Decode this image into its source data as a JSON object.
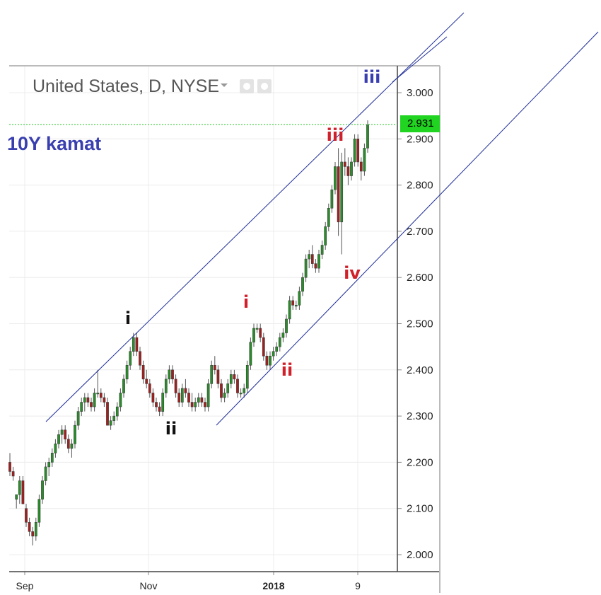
{
  "header": {
    "title": "United States, D, NYSE",
    "series_label": "10Y kamat"
  },
  "colors": {
    "up": "#2a8c2a",
    "down": "#a02020",
    "channel": "#1f2e9a",
    "wave_black": "#111111",
    "wave_red": "#d0202a",
    "wave_blue": "#3a3fb0",
    "price_tag": "#21d421"
  },
  "chart_data": {
    "type": "candlestick",
    "title": "United States, D, NYSE",
    "ylim": [
      1.95,
      3.06
    ],
    "y_ticks": [
      "3.000",
      "2.900",
      "2.800",
      "2.700",
      "2.600",
      "2.500",
      "2.400",
      "2.300",
      "2.200",
      "2.100",
      "2.000"
    ],
    "x_ticks": [
      "Sep",
      "Nov",
      "2018",
      "9"
    ],
    "last_price": "2.931",
    "grid": true,
    "candles": [
      [
        2.2,
        2.22,
        2.17,
        2.18
      ],
      [
        2.18,
        2.19,
        2.16,
        2.17
      ],
      [
        2.12,
        2.13,
        2.1,
        2.13
      ],
      [
        2.13,
        2.17,
        2.11,
        2.16
      ],
      [
        2.16,
        2.17,
        2.11,
        2.11
      ],
      [
        2.1,
        2.11,
        2.06,
        2.07
      ],
      [
        2.07,
        2.08,
        2.04,
        2.05
      ],
      [
        2.05,
        2.06,
        2.02,
        2.04
      ],
      [
        2.04,
        2.08,
        2.03,
        2.07
      ],
      [
        2.07,
        2.13,
        2.06,
        2.12
      ],
      [
        2.12,
        2.17,
        2.11,
        2.16
      ],
      [
        2.16,
        2.2,
        2.15,
        2.19
      ],
      [
        2.19,
        2.21,
        2.17,
        2.2
      ],
      [
        2.2,
        2.23,
        2.19,
        2.22
      ],
      [
        2.22,
        2.25,
        2.21,
        2.24
      ],
      [
        2.24,
        2.27,
        2.23,
        2.26
      ],
      [
        2.26,
        2.28,
        2.24,
        2.27
      ],
      [
        2.27,
        2.28,
        2.24,
        2.25
      ],
      [
        2.25,
        2.26,
        2.22,
        2.23
      ],
      [
        2.23,
        2.25,
        2.21,
        2.24
      ],
      [
        2.24,
        2.29,
        2.23,
        2.28
      ],
      [
        2.28,
        2.32,
        2.27,
        2.31
      ],
      [
        2.31,
        2.34,
        2.3,
        2.33
      ],
      [
        2.33,
        2.35,
        2.31,
        2.34
      ],
      [
        2.34,
        2.35,
        2.32,
        2.33
      ],
      [
        2.33,
        2.34,
        2.31,
        2.32
      ],
      [
        2.32,
        2.36,
        2.31,
        2.35
      ],
      [
        2.35,
        2.4,
        2.34,
        2.35
      ],
      [
        2.35,
        2.36,
        2.33,
        2.34
      ],
      [
        2.34,
        2.35,
        2.32,
        2.33
      ],
      [
        2.33,
        2.34,
        2.28,
        2.28
      ],
      [
        2.28,
        2.3,
        2.27,
        2.29
      ],
      [
        2.29,
        2.31,
        2.28,
        2.3
      ],
      [
        2.3,
        2.33,
        2.29,
        2.32
      ],
      [
        2.32,
        2.36,
        2.31,
        2.35
      ],
      [
        2.35,
        2.39,
        2.34,
        2.38
      ],
      [
        2.38,
        2.42,
        2.37,
        2.41
      ],
      [
        2.41,
        2.45,
        2.4,
        2.44
      ],
      [
        2.44,
        2.48,
        2.43,
        2.47
      ],
      [
        2.47,
        2.48,
        2.43,
        2.44
      ],
      [
        2.44,
        2.45,
        2.4,
        2.41
      ],
      [
        2.41,
        2.42,
        2.37,
        2.38
      ],
      [
        2.38,
        2.4,
        2.36,
        2.37
      ],
      [
        2.37,
        2.38,
        2.34,
        2.35
      ],
      [
        2.35,
        2.36,
        2.32,
        2.33
      ],
      [
        2.33,
        2.34,
        2.31,
        2.32
      ],
      [
        2.32,
        2.33,
        2.3,
        2.31
      ],
      [
        2.31,
        2.36,
        2.3,
        2.35
      ],
      [
        2.35,
        2.39,
        2.34,
        2.38
      ],
      [
        2.38,
        2.41,
        2.37,
        2.4
      ],
      [
        2.4,
        2.41,
        2.37,
        2.38
      ],
      [
        2.38,
        2.39,
        2.34,
        2.35
      ],
      [
        2.35,
        2.36,
        2.32,
        2.33
      ],
      [
        2.33,
        2.37,
        2.32,
        2.36
      ],
      [
        2.36,
        2.38,
        2.34,
        2.35
      ],
      [
        2.35,
        2.36,
        2.32,
        2.33
      ],
      [
        2.33,
        2.35,
        2.31,
        2.32
      ],
      [
        2.32,
        2.34,
        2.31,
        2.33
      ],
      [
        2.33,
        2.35,
        2.32,
        2.34
      ],
      [
        2.34,
        2.35,
        2.32,
        2.33
      ],
      [
        2.33,
        2.34,
        2.31,
        2.32
      ],
      [
        2.32,
        2.38,
        2.31,
        2.37
      ],
      [
        2.37,
        2.42,
        2.36,
        2.41
      ],
      [
        2.41,
        2.43,
        2.39,
        2.4
      ],
      [
        2.4,
        2.41,
        2.36,
        2.37
      ],
      [
        2.37,
        2.38,
        2.33,
        2.34
      ],
      [
        2.34,
        2.36,
        2.33,
        2.35
      ],
      [
        2.35,
        2.38,
        2.34,
        2.37
      ],
      [
        2.37,
        2.4,
        2.36,
        2.39
      ],
      [
        2.39,
        2.4,
        2.37,
        2.38
      ],
      [
        2.38,
        2.39,
        2.34,
        2.35
      ],
      [
        2.35,
        2.36,
        2.34,
        2.35
      ],
      [
        2.35,
        2.37,
        2.34,
        2.36
      ],
      [
        2.36,
        2.42,
        2.35,
        2.41
      ],
      [
        2.41,
        2.47,
        2.4,
        2.46
      ],
      [
        2.46,
        2.5,
        2.45,
        2.49
      ],
      [
        2.49,
        2.5,
        2.48,
        2.49
      ],
      [
        2.49,
        2.5,
        2.46,
        2.47
      ],
      [
        2.47,
        2.48,
        2.42,
        2.43
      ],
      [
        2.43,
        2.44,
        2.4,
        2.41
      ],
      [
        2.41,
        2.44,
        2.4,
        2.43
      ],
      [
        2.43,
        2.45,
        2.42,
        2.44
      ],
      [
        2.44,
        2.46,
        2.43,
        2.45
      ],
      [
        2.45,
        2.48,
        2.44,
        2.47
      ],
      [
        2.47,
        2.49,
        2.46,
        2.48
      ],
      [
        2.48,
        2.52,
        2.47,
        2.51
      ],
      [
        2.51,
        2.56,
        2.5,
        2.55
      ],
      [
        2.55,
        2.56,
        2.53,
        2.54
      ],
      [
        2.54,
        2.55,
        2.53,
        2.54
      ],
      [
        2.54,
        2.58,
        2.53,
        2.57
      ],
      [
        2.57,
        2.61,
        2.56,
        2.6
      ],
      [
        2.6,
        2.65,
        2.59,
        2.64
      ],
      [
        2.64,
        2.66,
        2.62,
        2.65
      ],
      [
        2.65,
        2.67,
        2.62,
        2.63
      ],
      [
        2.63,
        2.64,
        2.61,
        2.62
      ],
      [
        2.62,
        2.66,
        2.61,
        2.65
      ],
      [
        2.65,
        2.68,
        2.64,
        2.67
      ],
      [
        2.67,
        2.72,
        2.66,
        2.71
      ],
      [
        2.71,
        2.76,
        2.7,
        2.75
      ],
      [
        2.75,
        2.8,
        2.74,
        2.79
      ],
      [
        2.79,
        2.85,
        2.78,
        2.84
      ],
      [
        2.84,
        2.88,
        2.69,
        2.72
      ],
      [
        2.72,
        2.87,
        2.65,
        2.85
      ],
      [
        2.85,
        2.88,
        2.82,
        2.84
      ],
      [
        2.84,
        2.86,
        2.8,
        2.82
      ],
      [
        2.82,
        2.86,
        2.81,
        2.85
      ],
      [
        2.85,
        2.91,
        2.84,
        2.9
      ],
      [
        2.9,
        2.91,
        2.84,
        2.85
      ],
      [
        2.85,
        2.86,
        2.81,
        2.83
      ],
      [
        2.83,
        2.89,
        2.82,
        2.88
      ],
      [
        2.88,
        2.94,
        2.87,
        2.93
      ]
    ],
    "annotations": [
      {
        "text": "i",
        "color": "wave_black"
      },
      {
        "text": "ii",
        "color": "wave_black"
      },
      {
        "text": "i",
        "color": "wave_red"
      },
      {
        "text": "ii",
        "color": "wave_red"
      },
      {
        "text": "iii",
        "color": "wave_red"
      },
      {
        "text": "iv",
        "color": "wave_red"
      },
      {
        "text": "iii",
        "color": "wave_blue"
      }
    ]
  }
}
